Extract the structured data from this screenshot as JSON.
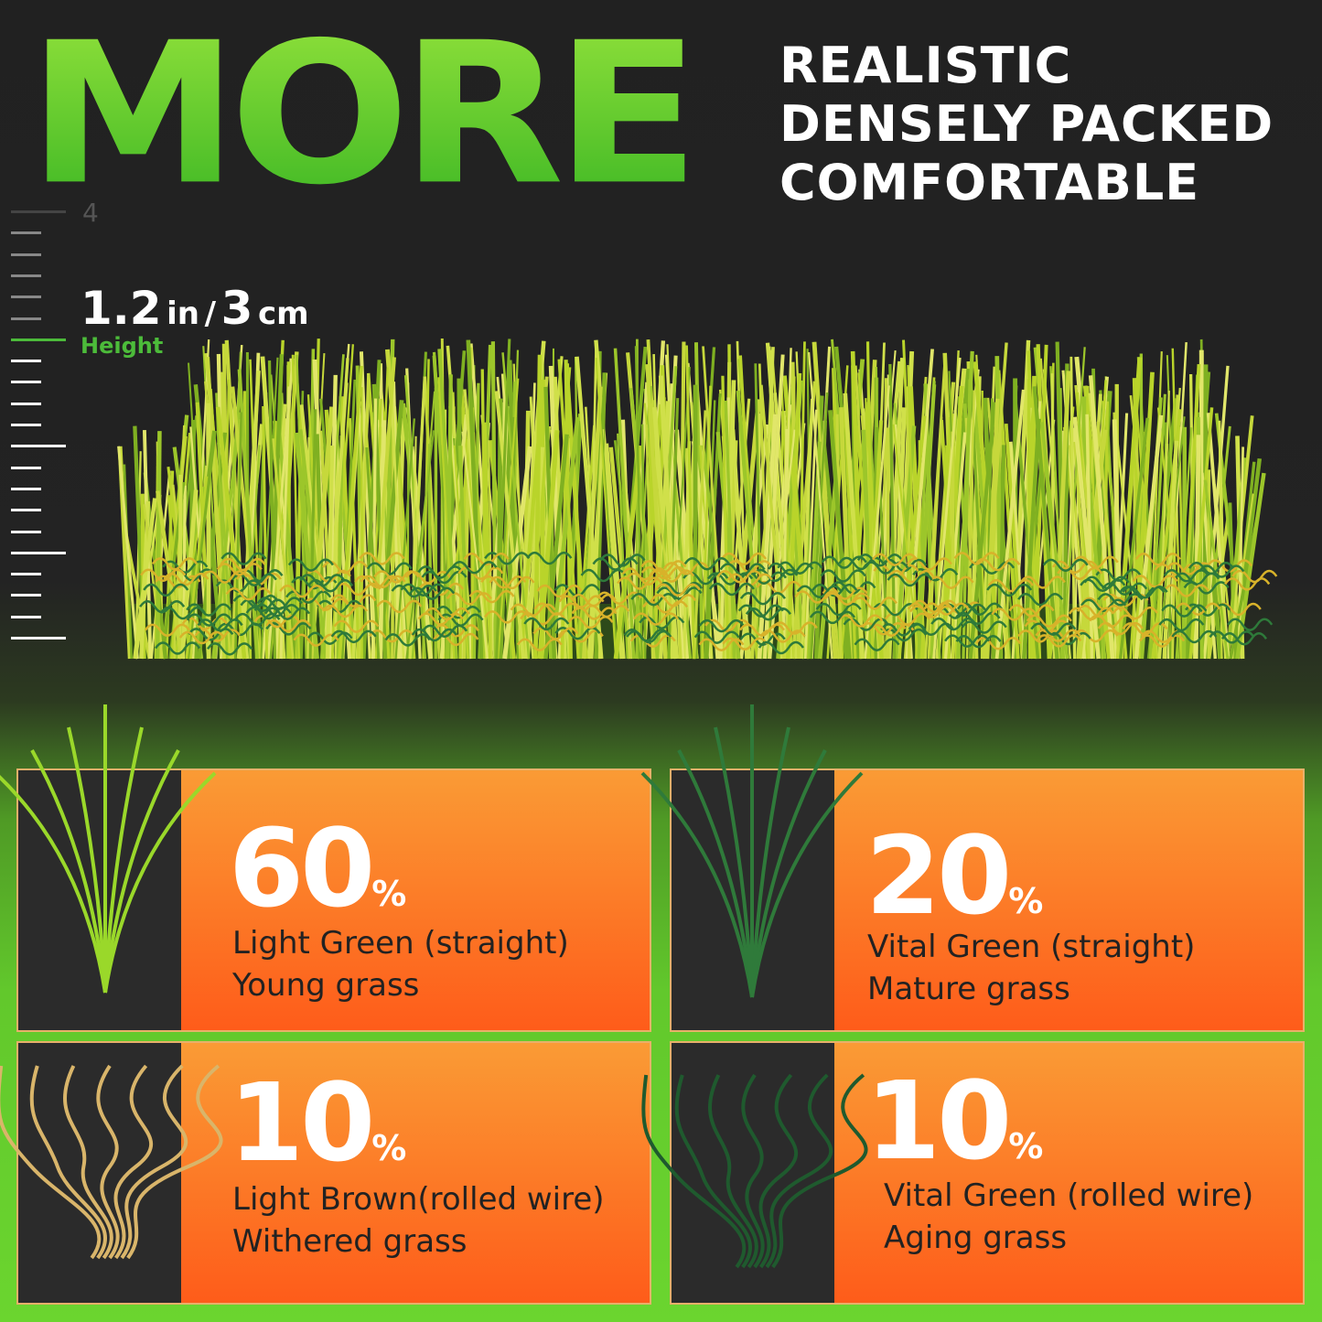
{
  "headline": "MORE",
  "features": [
    "REALISTIC",
    "DENSELY PACKED",
    "COMFORTABLE"
  ],
  "ruler": {
    "top_mark": "4",
    "height_value": "1.2",
    "height_unit_in": "in",
    "separator": "/",
    "height_value_cm": "3",
    "height_unit_cm": "cm",
    "label": "Height"
  },
  "cards": [
    {
      "percent": "60",
      "symbol": "%",
      "line1": "Light  Green (straight)",
      "line2": "Young grass",
      "blade_color": "#9ad82a",
      "blade_type": "straight"
    },
    {
      "percent": "20",
      "symbol": "%",
      "line1": "Vital Green (straight)",
      "line2": "Mature grass",
      "blade_color": "#2f7a3a",
      "blade_type": "straight"
    },
    {
      "percent": "10",
      "symbol": "%",
      "line1": "Light Brown(rolled wire)",
      "line2": "Withered grass",
      "blade_color": "#d9b56a",
      "blade_type": "curly"
    },
    {
      "percent": "10",
      "symbol": "%",
      "line1": "Vital Green (rolled wire)",
      "line2": "Aging grass",
      "blade_color": "#1f5a2e",
      "blade_type": "curly"
    }
  ],
  "colors": {
    "accent_green": "#4cbb3a",
    "card_orange_top": "#fa9b35",
    "card_orange_bottom": "#fe5c1a",
    "background": "#212121"
  }
}
